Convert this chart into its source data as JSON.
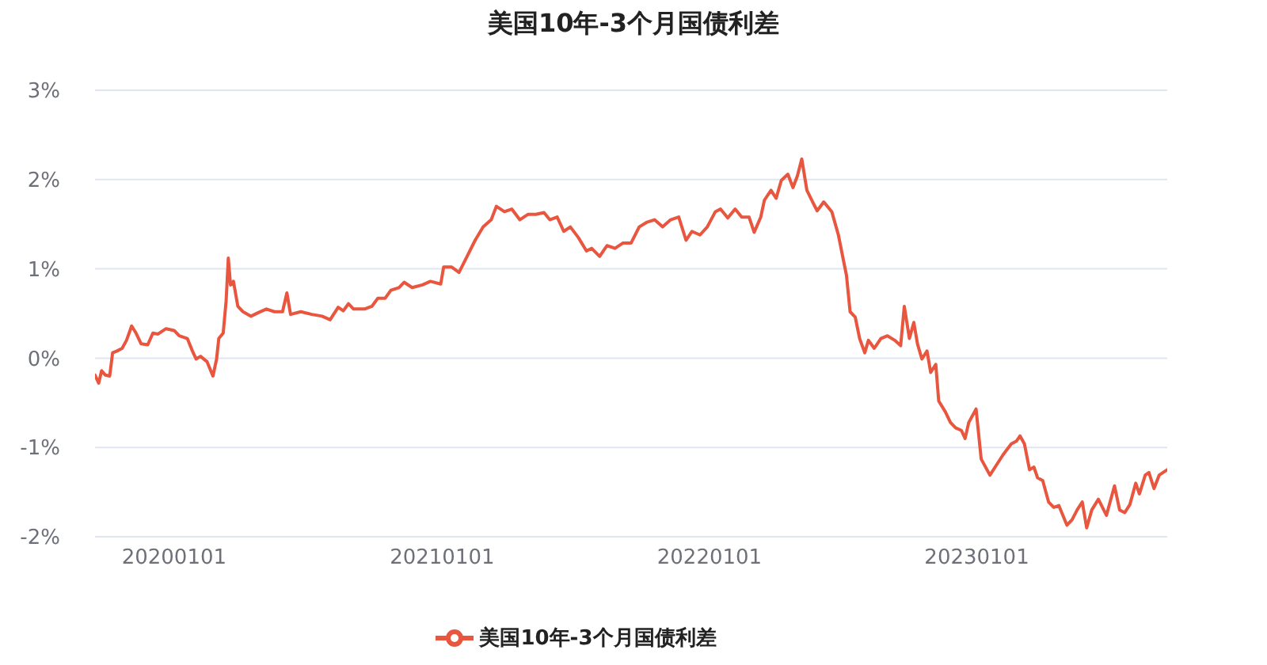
{
  "chart_data": {
    "type": "line",
    "title": "美国10年-3个月国债利差",
    "x": [
      "2019-09-15",
      "2019-09-20",
      "2019-09-24",
      "2019-09-29",
      "2019-10-05",
      "2019-10-09",
      "2019-10-15",
      "2019-10-22",
      "2019-10-28",
      "2019-11-04",
      "2019-11-10",
      "2019-11-17",
      "2019-11-26",
      "2019-12-03",
      "2019-12-10",
      "2019-12-21",
      "2020-01-01",
      "2020-01-08",
      "2020-01-19",
      "2020-01-26",
      "2020-01-31",
      "2020-02-06",
      "2020-02-15",
      "2020-02-23",
      "2020-02-28",
      "2020-03-02",
      "2020-03-08",
      "2020-03-12",
      "2020-03-15",
      "2020-03-18",
      "2020-03-22",
      "2020-03-28",
      "2020-04-04",
      "2020-04-15",
      "2020-04-25",
      "2020-05-06",
      "2020-05-17",
      "2020-05-28",
      "2020-06-03",
      "2020-06-08",
      "2020-06-22",
      "2020-07-07",
      "2020-07-21",
      "2020-08-01",
      "2020-08-12",
      "2020-08-19",
      "2020-08-26",
      "2020-09-02",
      "2020-09-17",
      "2020-09-27",
      "2020-10-05",
      "2020-10-15",
      "2020-10-23",
      "2020-11-03",
      "2020-11-10",
      "2020-11-21",
      "2020-12-05",
      "2020-12-16",
      "2020-12-30",
      "2021-01-03",
      "2021-01-14",
      "2021-01-24",
      "2021-02-04",
      "2021-02-15",
      "2021-02-26",
      "2021-03-09",
      "2021-03-16",
      "2021-03-27",
      "2021-04-06",
      "2021-04-17",
      "2021-04-28",
      "2021-05-09",
      "2021-05-20",
      "2021-05-28",
      "2021-06-07",
      "2021-06-16",
      "2021-06-25",
      "2021-07-06",
      "2021-07-17",
      "2021-07-24",
      "2021-08-04",
      "2021-08-14",
      "2021-08-25",
      "2021-09-05",
      "2021-09-16",
      "2021-09-27",
      "2021-10-07",
      "2021-10-18",
      "2021-10-29",
      "2021-11-09",
      "2021-11-20",
      "2021-11-30",
      "2021-12-08",
      "2021-12-19",
      "2021-12-29",
      "2022-01-09",
      "2022-01-16",
      "2022-01-26",
      "2022-02-05",
      "2022-02-14",
      "2022-02-24",
      "2022-03-03",
      "2022-03-12",
      "2022-03-17",
      "2022-03-26",
      "2022-04-02",
      "2022-04-09",
      "2022-04-18",
      "2022-04-25",
      "2022-05-01",
      "2022-05-07",
      "2022-05-14",
      "2022-05-23",
      "2022-05-28",
      "2022-06-06",
      "2022-06-17",
      "2022-06-26",
      "2022-07-04",
      "2022-07-07",
      "2022-07-12",
      "2022-07-19",
      "2022-07-25",
      "2022-08-01",
      "2022-08-06",
      "2022-08-14",
      "2022-08-23",
      "2022-09-01",
      "2022-09-11",
      "2022-09-19",
      "2022-09-24",
      "2022-10-01",
      "2022-10-07",
      "2022-10-12",
      "2022-10-18",
      "2022-10-25",
      "2022-10-30",
      "2022-11-06",
      "2022-11-10",
      "2022-11-19",
      "2022-11-26",
      "2022-12-03",
      "2022-12-11",
      "2022-12-16",
      "2022-12-21",
      "2022-12-31",
      "2023-01-07",
      "2023-01-19",
      "2023-01-26",
      "2023-02-06",
      "2023-02-17",
      "2023-02-24",
      "2023-03-01",
      "2023-03-07",
      "2023-03-14",
      "2023-03-20",
      "2023-03-25",
      "2023-04-01",
      "2023-04-09",
      "2023-04-16",
      "2023-04-23",
      "2023-05-04",
      "2023-05-11",
      "2023-05-18",
      "2023-05-25",
      "2023-05-31",
      "2023-06-07",
      "2023-06-16",
      "2023-06-27",
      "2023-07-08",
      "2023-07-15",
      "2023-07-22",
      "2023-07-29",
      "2023-08-06",
      "2023-08-11",
      "2023-08-19",
      "2023-08-24",
      "2023-08-31",
      "2023-09-07",
      "2023-09-18"
    ],
    "series": [
      {
        "name": "美国10年-3个月国债利差",
        "color": "#e8563f",
        "values": [
          -0.19,
          -0.28,
          -0.14,
          -0.19,
          -0.2,
          0.06,
          0.08,
          0.11,
          0.2,
          0.36,
          0.28,
          0.16,
          0.15,
          0.28,
          0.27,
          0.33,
          0.31,
          0.25,
          0.22,
          0.08,
          -0.01,
          0.02,
          -0.04,
          -0.2,
          -0.01,
          0.22,
          0.28,
          0.64,
          1.12,
          0.82,
          0.86,
          0.58,
          0.52,
          0.47,
          0.51,
          0.55,
          0.52,
          0.52,
          0.73,
          0.49,
          0.52,
          0.49,
          0.47,
          0.43,
          0.57,
          0.53,
          0.61,
          0.55,
          0.55,
          0.58,
          0.67,
          0.67,
          0.76,
          0.79,
          0.85,
          0.79,
          0.82,
          0.86,
          0.83,
          1.02,
          1.02,
          0.96,
          1.14,
          1.32,
          1.47,
          1.55,
          1.7,
          1.64,
          1.67,
          1.55,
          1.61,
          1.61,
          1.63,
          1.55,
          1.58,
          1.42,
          1.47,
          1.35,
          1.2,
          1.23,
          1.14,
          1.26,
          1.23,
          1.29,
          1.29,
          1.47,
          1.52,
          1.55,
          1.47,
          1.55,
          1.58,
          1.32,
          1.42,
          1.38,
          1.47,
          1.64,
          1.67,
          1.57,
          1.67,
          1.58,
          1.58,
          1.41,
          1.58,
          1.77,
          1.88,
          1.79,
          1.99,
          2.06,
          1.91,
          2.04,
          2.23,
          1.88,
          1.73,
          1.65,
          1.75,
          1.64,
          1.38,
          1.05,
          0.93,
          0.52,
          0.46,
          0.22,
          0.06,
          0.2,
          0.11,
          0.22,
          0.25,
          0.2,
          0.14,
          0.58,
          0.22,
          0.4,
          0.16,
          -0.01,
          0.08,
          -0.16,
          -0.07,
          -0.48,
          -0.6,
          -0.72,
          -0.78,
          -0.81,
          -0.9,
          -0.72,
          -0.57,
          -1.13,
          -1.31,
          -1.22,
          -1.08,
          -0.96,
          -0.93,
          -0.87,
          -0.96,
          -1.25,
          -1.22,
          -1.34,
          -1.37,
          -1.61,
          -1.67,
          -1.65,
          -1.87,
          -1.81,
          -1.7,
          -1.61,
          -1.9,
          -1.7,
          -1.58,
          -1.76,
          -1.43,
          -1.7,
          -1.73,
          -1.64,
          -1.4,
          -1.52,
          -1.31,
          -1.28,
          -1.46,
          -1.31,
          -1.25
        ]
      }
    ],
    "xlim": [
      "2019-09-15",
      "2023-09-18"
    ],
    "xticks": [
      {
        "value": "2020-01-01",
        "label": "20200101"
      },
      {
        "value": "2021-01-01",
        "label": "20210101"
      },
      {
        "value": "2022-01-01",
        "label": "20220101"
      },
      {
        "value": "2023-01-01",
        "label": "20230101"
      }
    ],
    "ylim": [
      -2,
      3
    ],
    "yticks": [
      {
        "value": -2,
        "label": "-2%"
      },
      {
        "value": -1,
        "label": "-1%"
      },
      {
        "value": 0,
        "label": "0%"
      },
      {
        "value": 1,
        "label": "1%"
      },
      {
        "value": 2,
        "label": "2%"
      },
      {
        "value": 3,
        "label": "3%"
      }
    ],
    "grid": "y",
    "legend": "bottom"
  }
}
